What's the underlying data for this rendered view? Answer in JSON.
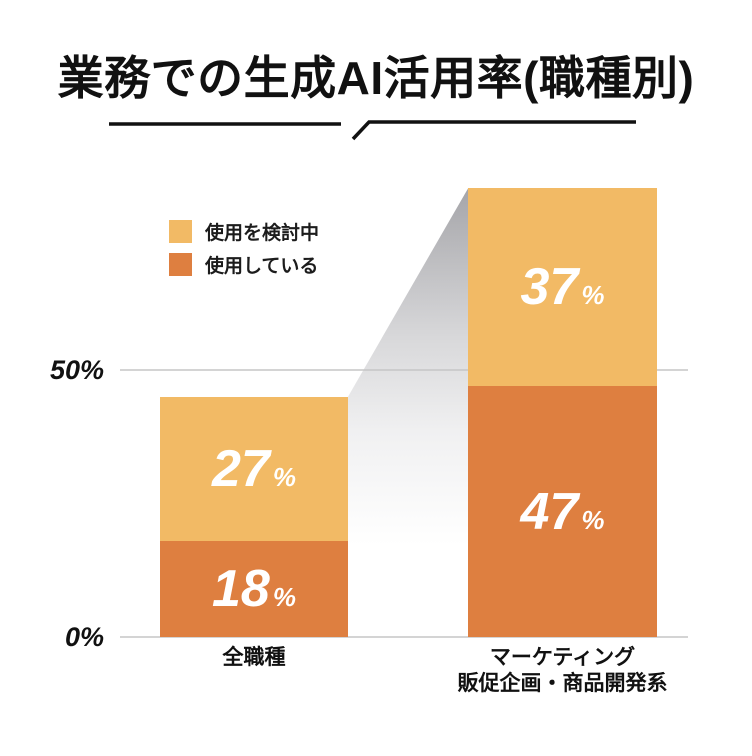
{
  "header": {
    "title": "業務での生成AI活用率(職種別)"
  },
  "legend": {
    "items": [
      {
        "label": "使用を検討中",
        "color": "#F2BA65"
      },
      {
        "label": "使用している",
        "color": "#DE7F40"
      }
    ]
  },
  "colors": {
    "considering": "#F2BA65",
    "using": "#DE7F40",
    "gridline": "#c6c6c6",
    "text": "#111111",
    "value_text": "#ffffff",
    "beam_gray": "#a5a5a9"
  },
  "chart_data": {
    "type": "bar",
    "stacked": true,
    "title": "業務での生成AI活用率(職種別)",
    "categories": [
      {
        "lines": [
          "全職種"
        ]
      },
      {
        "lines": [
          "マーケティング",
          "販促企画・商品開発系"
        ]
      }
    ],
    "series": [
      {
        "name": "使用している",
        "color": "#DE7F40",
        "values": [
          18,
          47
        ]
      },
      {
        "name": "使用を検討中",
        "color": "#F2BA65",
        "values": [
          27,
          37
        ]
      }
    ],
    "value_suffix": "%",
    "y_axis": {
      "ticks": [
        {
          "value": 0,
          "label": "0%"
        },
        {
          "value": 50,
          "label": "50%"
        }
      ],
      "range": [
        0,
        93
      ]
    },
    "totals": [
      45,
      84
    ],
    "legend_position": "upper-left-of-plot",
    "grid": "horizontal-at-ticks-only"
  }
}
